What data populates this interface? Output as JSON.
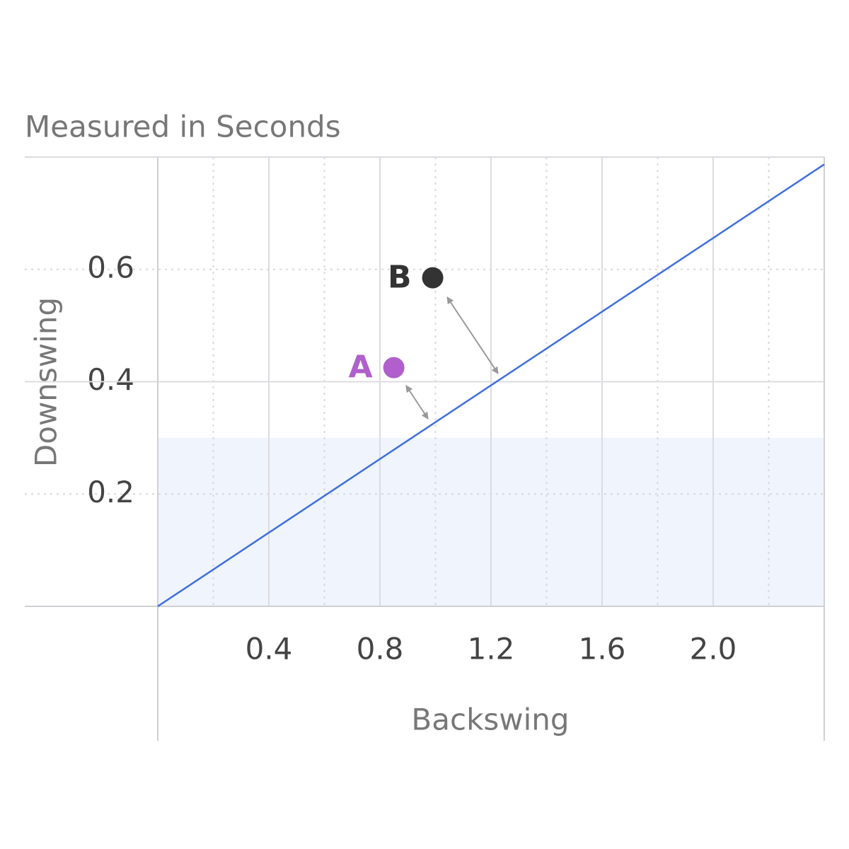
{
  "chart_data": {
    "type": "scatter",
    "title": "Measured in Seconds",
    "x_label": "Backswing",
    "y_label": "Downswing",
    "xlim": [
      0,
      2.4
    ],
    "ylim": [
      0,
      0.8
    ],
    "xticks": [
      0.4,
      0.8,
      1.2,
      1.6,
      {
        "value": 2.0,
        "label": "2.0"
      }
    ],
    "yticks": [
      0.2,
      0.4,
      0.6
    ],
    "x_minor_grid": [
      0.2,
      0.6,
      1.0,
      1.4,
      1.8,
      2.2
    ],
    "y_major_grid": [
      0.4,
      0.8
    ],
    "shaded_band": {
      "ylim": [
        0,
        0.3
      ],
      "color": "#eff4fd"
    },
    "reference_line": {
      "x": [
        0,
        2.4
      ],
      "values": [
        0,
        0.787
      ],
      "color": "#3f6fde"
    },
    "points": [
      {
        "name": "A",
        "x": 0.85,
        "y": 0.425,
        "color": "#b05fcc"
      },
      {
        "name": "B",
        "x": 0.99,
        "y": 0.585,
        "color": "#333333"
      }
    ]
  }
}
